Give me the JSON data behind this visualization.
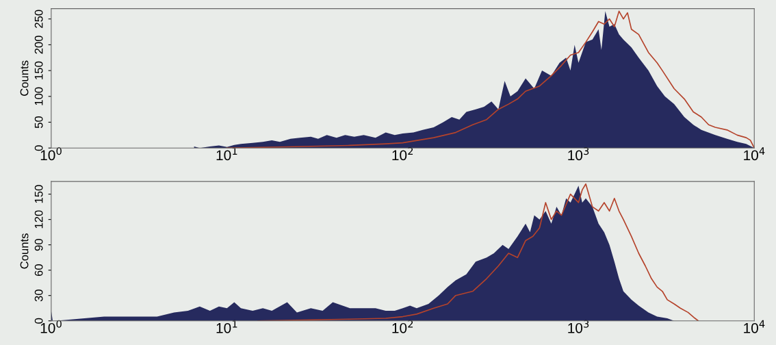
{
  "chart_data": [
    {
      "type": "area",
      "ylabel": "Counts",
      "log": "x",
      "xlim": [
        1,
        10000
      ],
      "ylim": [
        0,
        270
      ],
      "xticks": [
        {
          "value": 1,
          "label": "10$^{0}$"
        },
        {
          "value": 10,
          "label": "10$^{1}$"
        },
        {
          "value": 100,
          "label": "10$^{2}$"
        },
        {
          "value": 1000,
          "label": "10$^{3}$"
        },
        {
          "value": 10000,
          "label": "10$^{4}$"
        }
      ],
      "yticks": [
        0,
        50,
        100,
        150,
        200,
        250
      ],
      "grid": false,
      "series": [
        {
          "color": "#262a5e",
          "x": [
            6.5,
            7,
            8,
            9,
            10,
            11,
            12,
            14,
            16,
            18,
            20,
            23,
            26,
            30,
            33,
            37,
            42,
            47,
            53,
            60,
            70,
            80,
            90,
            100,
            115,
            130,
            150,
            170,
            190,
            210,
            230,
            260,
            290,
            320,
            350,
            380,
            410,
            450,
            500,
            560,
            620,
            700,
            780,
            850,
            900,
            950,
            1000,
            1100,
            1200,
            1300,
            1350,
            1420,
            1500,
            1600,
            1700,
            1800,
            2000,
            2200,
            2500,
            2800,
            3100,
            3500,
            4000,
            4500,
            5000,
            6000,
            7000,
            8000,
            9000,
            10000
          ],
          "values": [
            3,
            0,
            3,
            5,
            2,
            6,
            8,
            10,
            12,
            15,
            12,
            18,
            20,
            22,
            18,
            25,
            20,
            25,
            22,
            25,
            20,
            30,
            25,
            28,
            30,
            35,
            40,
            50,
            60,
            55,
            70,
            75,
            80,
            90,
            75,
            130,
            100,
            110,
            135,
            115,
            150,
            140,
            165,
            175,
            150,
            200,
            165,
            205,
            210,
            230,
            190,
            265,
            235,
            240,
            220,
            210,
            195,
            175,
            150,
            120,
            100,
            85,
            60,
            45,
            35,
            25,
            18,
            12,
            8,
            0
          ]
        },
        {
          "type": "line",
          "color": "#b5432b",
          "x": [
            10,
            20,
            50,
            80,
            100,
            150,
            200,
            250,
            300,
            350,
            400,
            450,
            500,
            600,
            700,
            800,
            900,
            1000,
            1100,
            1200,
            1300,
            1400,
            1500,
            1600,
            1700,
            1800,
            1900,
            2000,
            2200,
            2500,
            2800,
            3000,
            3500,
            4000,
            4500,
            5000,
            5500,
            6000,
            7000,
            8000,
            9000,
            9500,
            10000
          ],
          "values": [
            0,
            2,
            5,
            8,
            10,
            20,
            30,
            45,
            55,
            75,
            85,
            95,
            110,
            120,
            140,
            160,
            180,
            185,
            205,
            225,
            245,
            240,
            250,
            235,
            265,
            250,
            262,
            230,
            220,
            185,
            165,
            150,
            115,
            95,
            70,
            60,
            45,
            40,
            35,
            25,
            20,
            15,
            0
          ]
        }
      ]
    },
    {
      "type": "area",
      "ylabel": "Counts",
      "log": "x",
      "xlim": [
        1,
        10000
      ],
      "ylim": [
        0,
        165
      ],
      "xticks": [
        {
          "value": 1,
          "label": "10$^{0}$"
        },
        {
          "value": 10,
          "label": "10$^{1}$"
        },
        {
          "value": 100,
          "label": "10$^{2}$"
        },
        {
          "value": 1000,
          "label": "10$^{3}$"
        },
        {
          "value": 10000,
          "label": "10$^{4}$"
        }
      ],
      "yticks": [
        0,
        30,
        60,
        90,
        120,
        150
      ],
      "grid": false,
      "series": [
        {
          "color": "#262a5e",
          "x": [
            1,
            1.02,
            1.05,
            2,
            2.2,
            2.5,
            3,
            3.5,
            4,
            5,
            6,
            7,
            8,
            9,
            10,
            11,
            12,
            14,
            16,
            18,
            22,
            25,
            30,
            35,
            40,
            50,
            60,
            70,
            80,
            90,
            100,
            110,
            120,
            140,
            160,
            180,
            200,
            230,
            260,
            300,
            330,
            370,
            400,
            450,
            500,
            530,
            560,
            600,
            650,
            700,
            750,
            800,
            850,
            900,
            950,
            1000,
            1050,
            1100,
            1200,
            1300,
            1400,
            1500,
            1600,
            1700,
            1800,
            2000,
            2200,
            2500,
            2800,
            3200,
            3500
          ],
          "values": [
            12,
            0,
            0,
            5,
            5,
            5,
            5,
            5,
            5,
            10,
            12,
            17,
            12,
            17,
            15,
            22,
            15,
            12,
            15,
            12,
            22,
            10,
            15,
            12,
            22,
            15,
            15,
            15,
            12,
            12,
            15,
            18,
            15,
            20,
            30,
            40,
            48,
            55,
            70,
            75,
            80,
            90,
            85,
            100,
            115,
            105,
            125,
            120,
            130,
            115,
            135,
            125,
            145,
            140,
            150,
            160,
            140,
            145,
            135,
            115,
            105,
            90,
            70,
            50,
            35,
            25,
            18,
            10,
            5,
            3,
            0
          ]
        },
        {
          "type": "line",
          "color": "#b5432b",
          "x": [
            15,
            50,
            80,
            100,
            120,
            150,
            180,
            200,
            250,
            300,
            350,
            400,
            450,
            500,
            550,
            600,
            650,
            700,
            750,
            800,
            900,
            1000,
            1050,
            1100,
            1200,
            1300,
            1400,
            1500,
            1600,
            1700,
            1800,
            2000,
            2200,
            2400,
            2600,
            2800,
            3000,
            3200,
            3500,
            3800,
            4200,
            4600,
            4800
          ],
          "values": [
            0,
            2,
            3,
            5,
            8,
            15,
            20,
            30,
            35,
            50,
            65,
            80,
            75,
            95,
            100,
            110,
            140,
            120,
            130,
            125,
            150,
            140,
            155,
            162,
            135,
            130,
            140,
            130,
            145,
            130,
            120,
            100,
            80,
            65,
            50,
            40,
            35,
            25,
            20,
            15,
            10,
            3,
            0
          ]
        }
      ]
    }
  ]
}
